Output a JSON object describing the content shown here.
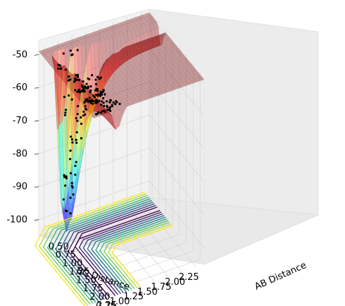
{
  "chart_data": {
    "type": "surface3d",
    "title": "",
    "xlabel": "AB Distance",
    "ylabel": "BC Distance",
    "zlabel": "",
    "xticks": [
      "0.50",
      "0.75",
      "1.00",
      "1.25",
      "1.50",
      "1.75",
      "2.00",
      "2.25"
    ],
    "yticks": [
      "0.50",
      "0.75",
      "1.00",
      "1.25",
      "1.50",
      "1.75",
      "2.00",
      "2.25"
    ],
    "zticks": [
      "-50",
      "-60",
      "-70",
      "-80",
      "-90",
      "-100"
    ],
    "xlim": [
      0.4,
      2.4
    ],
    "ylim": [
      0.4,
      2.4
    ],
    "zlim": [
      -105,
      -48
    ],
    "surface_colormap": "jet",
    "contour_colormap": "viridis",
    "surface_alpha": 0.35,
    "surface_min_z": -103,
    "surface_plateau_z": -51,
    "saddle_z": -94,
    "wells": [
      {
        "description": "AB well",
        "ab": 0.74,
        "bc_range": [
          1.1,
          2.4
        ]
      },
      {
        "description": "BC well",
        "bc": 0.74,
        "ab_range": [
          1.1,
          2.4
        ]
      }
    ],
    "trajectory_marker_color": "#000000"
  }
}
